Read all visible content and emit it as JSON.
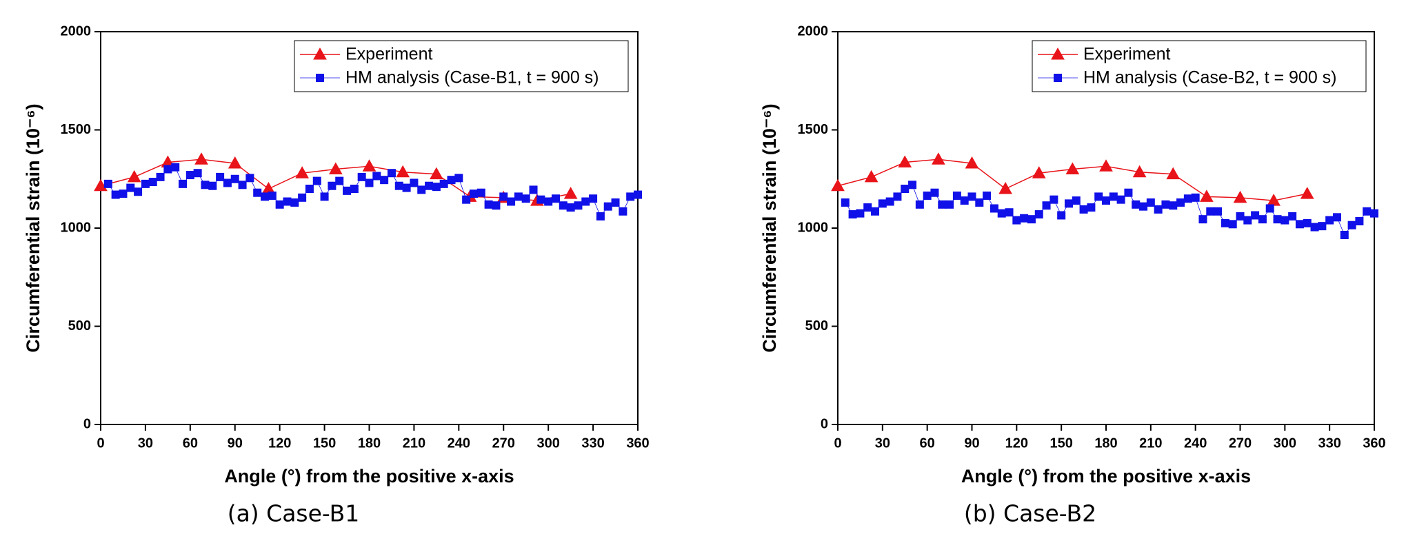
{
  "chart_data": [
    {
      "type": "line",
      "x_label": "Angle (°) from the positive x-axis",
      "y_label": "Circumferential strain (10⁻⁶)",
      "caption": "(a) Case-B1",
      "xlim": [
        0,
        360
      ],
      "xticks": [
        0,
        30,
        60,
        90,
        120,
        150,
        180,
        210,
        240,
        270,
        300,
        330,
        360
      ],
      "ylim": [
        0,
        2000
      ],
      "yticks": [
        0,
        500,
        1000,
        1500,
        2000
      ],
      "series": [
        {
          "name": "Experiment",
          "color": "#e8141a",
          "marker": "triangle",
          "x": [
            0,
            22.5,
            45,
            67.5,
            90,
            112.5,
            135,
            157.5,
            180,
            202.5,
            225,
            247.5,
            270,
            292.5,
            315
          ],
          "values": [
            1215,
            1260,
            1335,
            1350,
            1330,
            1200,
            1280,
            1300,
            1315,
            1285,
            1275,
            1160,
            1155,
            1140,
            1175
          ]
        },
        {
          "name": "HM analysis (Case-B1, t = 900 s)",
          "color": "#1010e8",
          "marker": "square",
          "x": [
            5,
            10,
            15,
            20,
            25,
            30,
            35,
            40,
            45,
            50,
            55,
            60,
            65,
            70,
            75,
            80,
            85,
            90,
            95,
            100,
            105,
            110,
            115,
            120,
            125,
            130,
            135,
            140,
            145,
            150,
            155,
            160,
            165,
            170,
            175,
            180,
            185,
            190,
            195,
            200,
            205,
            210,
            215,
            220,
            225,
            230,
            235,
            240,
            245,
            250,
            255,
            260,
            265,
            270,
            275,
            280,
            285,
            290,
            295,
            300,
            305,
            310,
            315,
            320,
            325,
            330,
            335,
            340,
            345,
            350,
            355,
            360
          ],
          "values": [
            1225,
            1170,
            1175,
            1205,
            1185,
            1225,
            1235,
            1260,
            1300,
            1310,
            1225,
            1270,
            1280,
            1220,
            1215,
            1260,
            1230,
            1250,
            1220,
            1255,
            1180,
            1160,
            1165,
            1120,
            1135,
            1130,
            1155,
            1200,
            1240,
            1160,
            1215,
            1240,
            1190,
            1200,
            1260,
            1230,
            1265,
            1245,
            1280,
            1215,
            1205,
            1230,
            1195,
            1215,
            1210,
            1225,
            1245,
            1255,
            1145,
            1175,
            1180,
            1120,
            1115,
            1160,
            1135,
            1160,
            1150,
            1195,
            1145,
            1135,
            1150,
            1115,
            1105,
            1115,
            1135,
            1150,
            1060,
            1110,
            1130,
            1085,
            1160,
            1170
          ]
        }
      ]
    },
    {
      "type": "line",
      "x_label": "Angle (°) from the positive x-axis",
      "y_label": "Circumferential strain (10⁻⁶)",
      "caption": "(b) Case-B2",
      "xlim": [
        0,
        360
      ],
      "xticks": [
        0,
        30,
        60,
        90,
        120,
        150,
        180,
        210,
        240,
        270,
        300,
        330,
        360
      ],
      "ylim": [
        0,
        2000
      ],
      "yticks": [
        0,
        500,
        1000,
        1500,
        2000
      ],
      "series": [
        {
          "name": "Experiment",
          "color": "#e8141a",
          "marker": "triangle",
          "x": [
            0,
            22.5,
            45,
            67.5,
            90,
            112.5,
            135,
            157.5,
            180,
            202.5,
            225,
            247.5,
            270,
            292.5,
            315
          ],
          "values": [
            1215,
            1260,
            1335,
            1350,
            1330,
            1200,
            1280,
            1300,
            1315,
            1285,
            1275,
            1160,
            1155,
            1140,
            1175
          ]
        },
        {
          "name": "HM analysis (Case-B2, t = 900 s)",
          "color": "#1010e8",
          "marker": "square",
          "x": [
            5,
            10,
            15,
            20,
            25,
            30,
            35,
            40,
            45,
            50,
            55,
            60,
            65,
            70,
            75,
            80,
            85,
            90,
            95,
            100,
            105,
            110,
            115,
            120,
            125,
            130,
            135,
            140,
            145,
            150,
            155,
            160,
            165,
            170,
            175,
            180,
            185,
            190,
            195,
            200,
            205,
            210,
            215,
            220,
            225,
            230,
            235,
            240,
            245,
            250,
            255,
            260,
            265,
            270,
            275,
            280,
            285,
            290,
            295,
            300,
            305,
            310,
            315,
            320,
            325,
            330,
            335,
            340,
            345,
            350,
            355,
            360
          ],
          "values": [
            1130,
            1070,
            1075,
            1105,
            1085,
            1125,
            1135,
            1160,
            1200,
            1220,
            1120,
            1165,
            1180,
            1120,
            1120,
            1165,
            1140,
            1160,
            1130,
            1165,
            1100,
            1075,
            1080,
            1040,
            1050,
            1045,
            1070,
            1115,
            1145,
            1065,
            1125,
            1140,
            1095,
            1105,
            1160,
            1140,
            1160,
            1145,
            1180,
            1120,
            1110,
            1130,
            1095,
            1120,
            1115,
            1130,
            1150,
            1155,
            1045,
            1085,
            1085,
            1025,
            1020,
            1060,
            1040,
            1065,
            1045,
            1100,
            1045,
            1040,
            1060,
            1020,
            1025,
            1005,
            1010,
            1040,
            1055,
            965,
            1015,
            1035,
            1085,
            1075
          ]
        }
      ]
    }
  ]
}
